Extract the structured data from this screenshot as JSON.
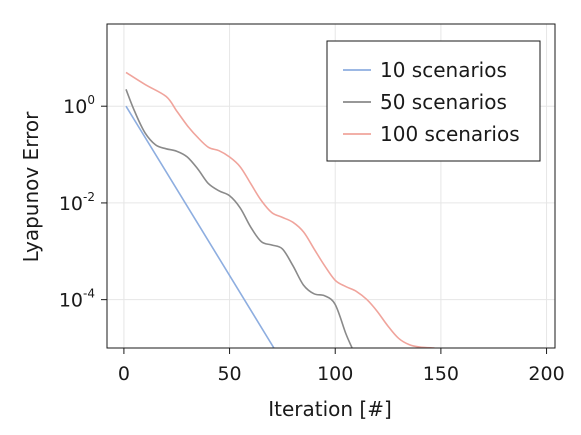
{
  "chart_data": {
    "type": "line",
    "xlabel": "Iteration [#]",
    "ylabel": "Lyapunov Error",
    "xlim": [
      -8,
      204
    ],
    "ylim_log10": [
      -5,
      1.7
    ],
    "y_scale": "log10",
    "x_ticks": [
      {
        "value": 0,
        "label": "0"
      },
      {
        "value": 50,
        "label": "50"
      },
      {
        "value": 100,
        "label": "100"
      },
      {
        "value": 150,
        "label": "150"
      },
      {
        "value": 200,
        "label": "200"
      }
    ],
    "y_ticks": [
      {
        "log10": 0,
        "base": "10",
        "exp": "0"
      },
      {
        "log10": -2,
        "base": "10",
        "exp": "-2"
      },
      {
        "log10": -4,
        "base": "10",
        "exp": "-4"
      }
    ],
    "grid": true,
    "legend_position": "top-right",
    "series": [
      {
        "name": "10 scenarios",
        "color": "#8eaee0",
        "points": [
          [
            1,
            0
          ],
          [
            71,
            -5
          ]
        ]
      },
      {
        "name": "50 scenarios",
        "color": "#8a8a8a",
        "points": [
          [
            1,
            0.35
          ],
          [
            5,
            -0.1
          ],
          [
            10,
            -0.55
          ],
          [
            15,
            -0.8
          ],
          [
            20,
            -0.88
          ],
          [
            25,
            -0.93
          ],
          [
            30,
            -1.05
          ],
          [
            35,
            -1.3
          ],
          [
            40,
            -1.6
          ],
          [
            45,
            -1.75
          ],
          [
            50,
            -1.85
          ],
          [
            55,
            -2.1
          ],
          [
            60,
            -2.5
          ],
          [
            65,
            -2.8
          ],
          [
            70,
            -2.87
          ],
          [
            75,
            -2.95
          ],
          [
            80,
            -3.3
          ],
          [
            85,
            -3.7
          ],
          [
            90,
            -3.88
          ],
          [
            95,
            -3.92
          ],
          [
            100,
            -4.1
          ],
          [
            105,
            -4.7
          ],
          [
            108,
            -5
          ]
        ]
      },
      {
        "name": "100 scenarios",
        "color": "#f0a49c",
        "points": [
          [
            1,
            0.7
          ],
          [
            10,
            0.45
          ],
          [
            20,
            0.2
          ],
          [
            25,
            -0.1
          ],
          [
            30,
            -0.4
          ],
          [
            35,
            -0.65
          ],
          [
            40,
            -0.85
          ],
          [
            45,
            -0.92
          ],
          [
            50,
            -1.05
          ],
          [
            55,
            -1.25
          ],
          [
            60,
            -1.6
          ],
          [
            65,
            -1.95
          ],
          [
            70,
            -2.2
          ],
          [
            75,
            -2.3
          ],
          [
            80,
            -2.4
          ],
          [
            85,
            -2.6
          ],
          [
            90,
            -2.95
          ],
          [
            95,
            -3.3
          ],
          [
            100,
            -3.6
          ],
          [
            105,
            -3.73
          ],
          [
            110,
            -3.83
          ],
          [
            115,
            -4.0
          ],
          [
            120,
            -4.25
          ],
          [
            125,
            -4.55
          ],
          [
            130,
            -4.8
          ],
          [
            135,
            -4.93
          ],
          [
            140,
            -4.98
          ],
          [
            147,
            -5
          ]
        ]
      }
    ]
  }
}
